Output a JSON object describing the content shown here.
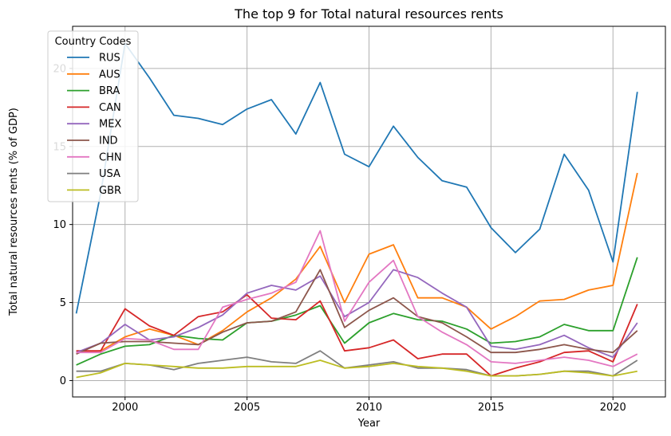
{
  "chart_data": {
    "type": "line",
    "title": "The top 9 for Total natural resources rents",
    "xlabel": "Year",
    "ylabel": "Total natural resources rents (% of GDP)",
    "xlim": [
      1997.85,
      2022.15
    ],
    "ylim": [
      -1.05,
      22.7
    ],
    "xticks": [
      2000,
      2005,
      2010,
      2015,
      2020
    ],
    "yticks": [
      0,
      5,
      10,
      15,
      20
    ],
    "grid": true,
    "legend": {
      "title": "Country Codes",
      "position": "top-left"
    },
    "x": [
      1998,
      1999,
      2000,
      2001,
      2002,
      2003,
      2004,
      2005,
      2006,
      2007,
      2008,
      2009,
      2010,
      2011,
      2012,
      2013,
      2014,
      2015,
      2016,
      2017,
      2018,
      2019,
      2020,
      2021
    ],
    "series": [
      {
        "name": "RUS",
        "color": "#1f77b4",
        "values": [
          4.3,
          12.0,
          21.6,
          19.4,
          17.0,
          16.8,
          16.4,
          17.4,
          18.0,
          15.8,
          19.1,
          14.5,
          13.7,
          16.3,
          14.3,
          12.8,
          12.4,
          9.8,
          8.2,
          9.7,
          14.5,
          12.2,
          7.6,
          18.5
        ]
      },
      {
        "name": "AUS",
        "color": "#ff7f0e",
        "values": [
          1.8,
          1.9,
          2.8,
          3.3,
          2.9,
          2.3,
          3.2,
          4.4,
          5.3,
          6.5,
          8.6,
          5.0,
          8.1,
          8.7,
          5.3,
          5.3,
          4.7,
          3.3,
          4.1,
          5.1,
          5.2,
          5.8,
          6.1,
          13.3
        ]
      },
      {
        "name": "BRA",
        "color": "#2ca02c",
        "values": [
          1.0,
          1.7,
          2.2,
          2.3,
          2.9,
          2.7,
          2.6,
          3.7,
          3.8,
          4.2,
          4.8,
          2.4,
          3.7,
          4.3,
          3.9,
          3.8,
          3.3,
          2.4,
          2.5,
          2.8,
          3.6,
          3.2,
          3.2,
          7.9
        ]
      },
      {
        "name": "CAN",
        "color": "#d62728",
        "values": [
          1.9,
          1.9,
          4.6,
          3.5,
          2.9,
          4.1,
          4.4,
          5.5,
          4.0,
          3.9,
          5.1,
          1.9,
          2.1,
          2.6,
          1.4,
          1.7,
          1.7,
          0.3,
          0.8,
          1.2,
          1.8,
          1.9,
          1.2,
          4.9
        ]
      },
      {
        "name": "MEX",
        "color": "#9467bd",
        "values": [
          1.8,
          2.4,
          3.6,
          2.6,
          2.8,
          3.4,
          4.2,
          5.6,
          6.1,
          5.8,
          6.7,
          4.1,
          5.0,
          7.1,
          6.6,
          5.6,
          4.7,
          2.2,
          2.0,
          2.3,
          2.9,
          2.1,
          1.5,
          3.7
        ]
      },
      {
        "name": "IND",
        "color": "#8c564b",
        "values": [
          1.7,
          2.4,
          2.5,
          2.5,
          2.4,
          2.3,
          3.1,
          3.7,
          3.8,
          4.4,
          7.1,
          3.4,
          4.5,
          5.3,
          4.1,
          3.7,
          2.8,
          1.8,
          1.8,
          2.0,
          2.3,
          2.0,
          1.8,
          3.2
        ]
      },
      {
        "name": "CHN",
        "color": "#e377c2",
        "values": [
          1.8,
          1.8,
          2.7,
          2.6,
          2.0,
          2.0,
          4.7,
          5.2,
          5.6,
          6.3,
          9.6,
          3.8,
          6.3,
          7.7,
          4.1,
          3.1,
          2.3,
          1.2,
          1.1,
          1.3,
          1.5,
          1.3,
          0.9,
          1.7
        ]
      },
      {
        "name": "USA",
        "color": "#7f7f7f",
        "values": [
          0.6,
          0.6,
          1.1,
          1.0,
          0.7,
          1.1,
          1.3,
          1.5,
          1.2,
          1.1,
          1.9,
          0.8,
          1.0,
          1.2,
          0.8,
          0.8,
          0.7,
          0.3,
          0.3,
          0.4,
          0.6,
          0.6,
          0.3,
          1.3
        ]
      },
      {
        "name": "GBR",
        "color": "#bcbd22",
        "values": [
          0.2,
          0.5,
          1.1,
          1.0,
          0.9,
          0.8,
          0.8,
          0.9,
          0.9,
          0.9,
          1.3,
          0.8,
          0.9,
          1.1,
          0.9,
          0.8,
          0.6,
          0.3,
          0.3,
          0.4,
          0.6,
          0.5,
          0.3,
          0.6
        ]
      }
    ]
  }
}
